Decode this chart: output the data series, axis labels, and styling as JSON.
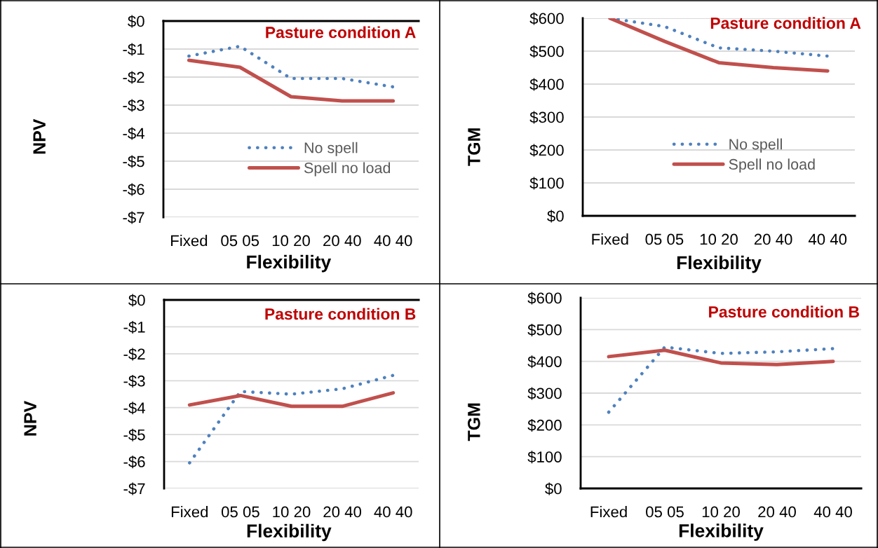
{
  "chart_data": [
    {
      "type": "line",
      "title": "Pasture condition A",
      "xlabel": "Flexibility",
      "ylabel": "NPV",
      "categories": [
        "Fixed",
        "05 05",
        "10 20",
        "20 40",
        "40 40"
      ],
      "series": [
        {
          "name": "No spell",
          "color": "#4f81bd",
          "line_style": "dotted",
          "values": [
            -1.25,
            -0.9,
            -2.05,
            -2.05,
            -2.35
          ]
        },
        {
          "name": "Spell no load",
          "color": "#c0504d",
          "line_style": "solid",
          "values": [
            -1.4,
            -1.65,
            -2.7,
            -2.85,
            -2.85
          ]
        }
      ],
      "ylim": [
        -7,
        0
      ],
      "yticks": [
        {
          "value": 0,
          "label": "$0"
        },
        {
          "value": -1,
          "label": "-$1"
        },
        {
          "value": -2,
          "label": "-$2"
        },
        {
          "value": -3,
          "label": "-$3"
        },
        {
          "value": -4,
          "label": "-$4"
        },
        {
          "value": -5,
          "label": "-$5"
        },
        {
          "value": -6,
          "label": "-$6"
        },
        {
          "value": -7,
          "label": "-$7"
        }
      ],
      "grid": "y",
      "legend": "right"
    },
    {
      "type": "line",
      "title": "Pasture condition A",
      "xlabel": "Flexibility",
      "ylabel": "TGM",
      "categories": [
        "Fixed",
        "05 05",
        "10 20",
        "20 40",
        "40 40"
      ],
      "series": [
        {
          "name": "No spell",
          "color": "#4f81bd",
          "line_style": "dotted",
          "values": [
            600,
            575,
            510,
            500,
            485
          ]
        },
        {
          "name": "Spell no load",
          "color": "#c0504d",
          "line_style": "solid",
          "values": [
            600,
            530,
            465,
            450,
            440
          ]
        }
      ],
      "ylim": [
        0,
        600
      ],
      "yticks": [
        {
          "value": 0,
          "label": "$0"
        },
        {
          "value": 100,
          "label": "$100"
        },
        {
          "value": 200,
          "label": "$200"
        },
        {
          "value": 300,
          "label": "$300"
        },
        {
          "value": 400,
          "label": "$400"
        },
        {
          "value": 500,
          "label": "$500"
        },
        {
          "value": 600,
          "label": "$600"
        }
      ],
      "grid": "y",
      "legend": "right"
    },
    {
      "type": "line",
      "title": "Pasture condition B",
      "xlabel": "Flexibility",
      "ylabel": "NPV",
      "categories": [
        "Fixed",
        "05 05",
        "10 20",
        "20 40",
        "40 40"
      ],
      "series": [
        {
          "color": "#4f81bd",
          "line_style": "dotted",
          "values": [
            -6.05,
            -3.4,
            -3.5,
            -3.3,
            -2.8
          ]
        },
        {
          "color": "#c0504d",
          "line_style": "solid",
          "values": [
            -3.9,
            -3.55,
            -3.95,
            -3.95,
            -3.45
          ]
        }
      ],
      "ylim": [
        -7,
        0
      ],
      "yticks": [
        {
          "value": 0,
          "label": "$0"
        },
        {
          "value": -1,
          "label": "-$1"
        },
        {
          "value": -2,
          "label": "-$2"
        },
        {
          "value": -3,
          "label": "-$3"
        },
        {
          "value": -4,
          "label": "-$4"
        },
        {
          "value": -5,
          "label": "-$5"
        },
        {
          "value": -6,
          "label": "-$6"
        },
        {
          "value": -7,
          "label": "-$7"
        }
      ],
      "grid": "y",
      "legend": false
    },
    {
      "type": "line",
      "title": "Pasture condition B",
      "xlabel": "Flexibility",
      "ylabel": "TGM",
      "categories": [
        "Fixed",
        "05 05",
        "10 20",
        "20 40",
        "40 40"
      ],
      "series": [
        {
          "color": "#4f81bd",
          "line_style": "dotted",
          "values": [
            240,
            445,
            425,
            430,
            440
          ]
        },
        {
          "color": "#c0504d",
          "line_style": "solid",
          "values": [
            415,
            435,
            395,
            390,
            400
          ]
        }
      ],
      "ylim": [
        0,
        600
      ],
      "yticks": [
        {
          "value": 0,
          "label": "$0"
        },
        {
          "value": 100,
          "label": "$100"
        },
        {
          "value": 200,
          "label": "$200"
        },
        {
          "value": 300,
          "label": "$300"
        },
        {
          "value": 400,
          "label": "$400"
        },
        {
          "value": 500,
          "label": "$500"
        },
        {
          "value": 600,
          "label": "$600"
        }
      ],
      "grid": "y",
      "legend": false
    }
  ]
}
